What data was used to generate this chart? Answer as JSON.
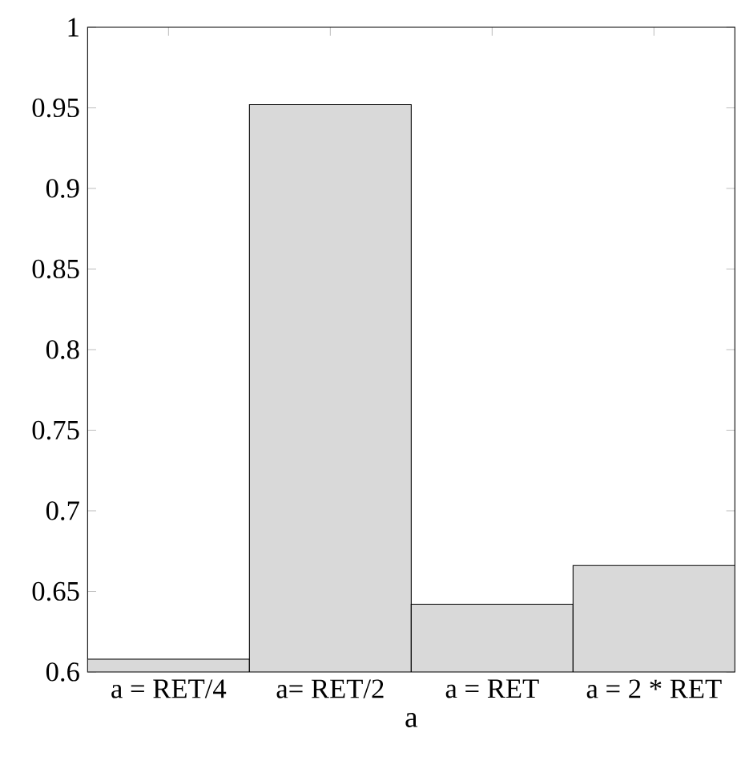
{
  "chart_data": {
    "type": "bar",
    "xlabel": "a",
    "categories": [
      "a = RET/4",
      "a= RET/2",
      "a = RET",
      "a = 2 * RET"
    ],
    "values": [
      0.608,
      0.952,
      0.642,
      0.666
    ],
    "color": "#d9d9d9",
    "ylim": [
      0.6,
      1
    ],
    "yticks": [
      0.6,
      0.65,
      0.7,
      0.75,
      0.8,
      0.85,
      0.9,
      0.95,
      1
    ],
    "grid": false
  }
}
